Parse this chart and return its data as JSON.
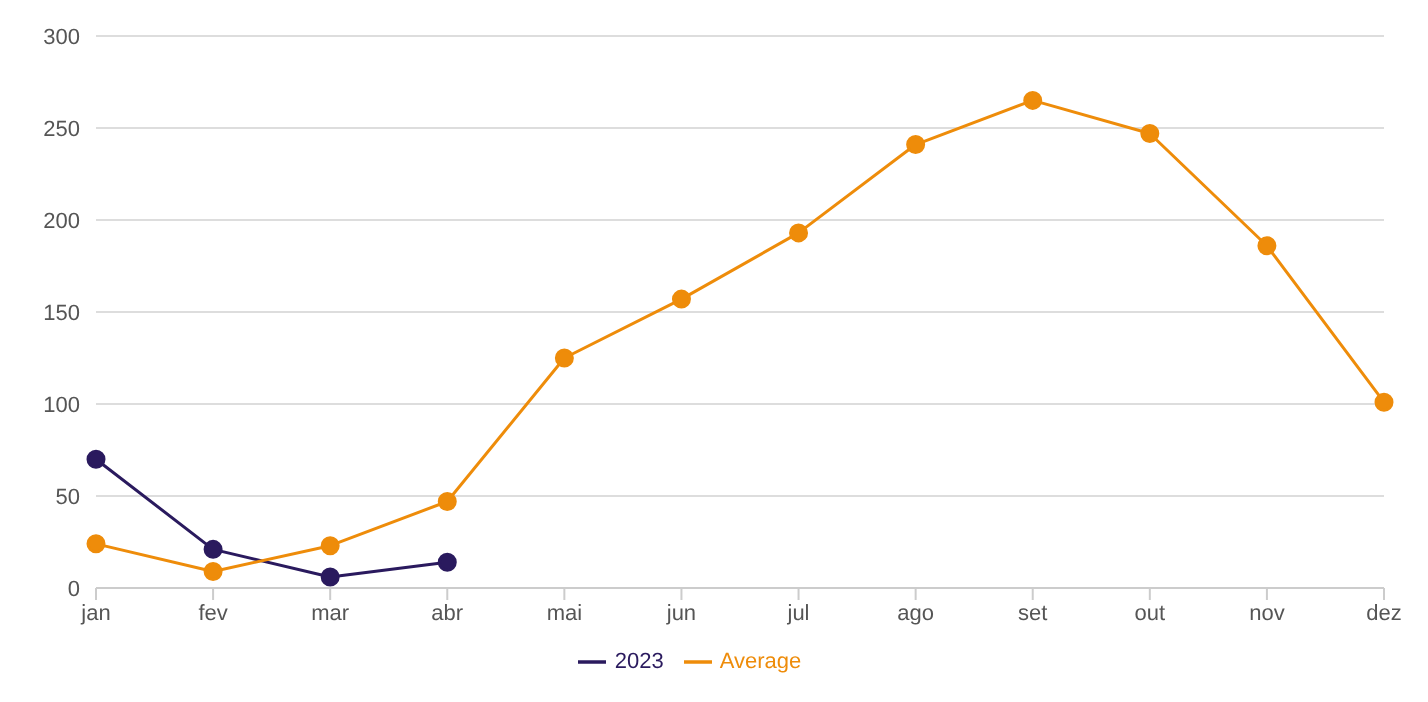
{
  "chart_data": {
    "type": "line",
    "categories": [
      "jan",
      "fev",
      "mar",
      "abr",
      "mai",
      "jun",
      "jul",
      "ago",
      "set",
      "out",
      "nov",
      "dez"
    ],
    "series": [
      {
        "name": "2023",
        "color": "#2a1a5e",
        "values": [
          70,
          21,
          6,
          14,
          null,
          null,
          null,
          null,
          null,
          null,
          null,
          null
        ]
      },
      {
        "name": "Average",
        "color": "#ee8c0a",
        "values": [
          24,
          9,
          23,
          47,
          125,
          157,
          193,
          241,
          265,
          247,
          186,
          101
        ]
      }
    ],
    "ylim": [
      0,
      300
    ],
    "yticks": [
      0,
      50,
      100,
      150,
      200,
      250,
      300
    ],
    "grid": "y",
    "legend": "bottom",
    "marker": "circle",
    "line_style": "solid"
  }
}
